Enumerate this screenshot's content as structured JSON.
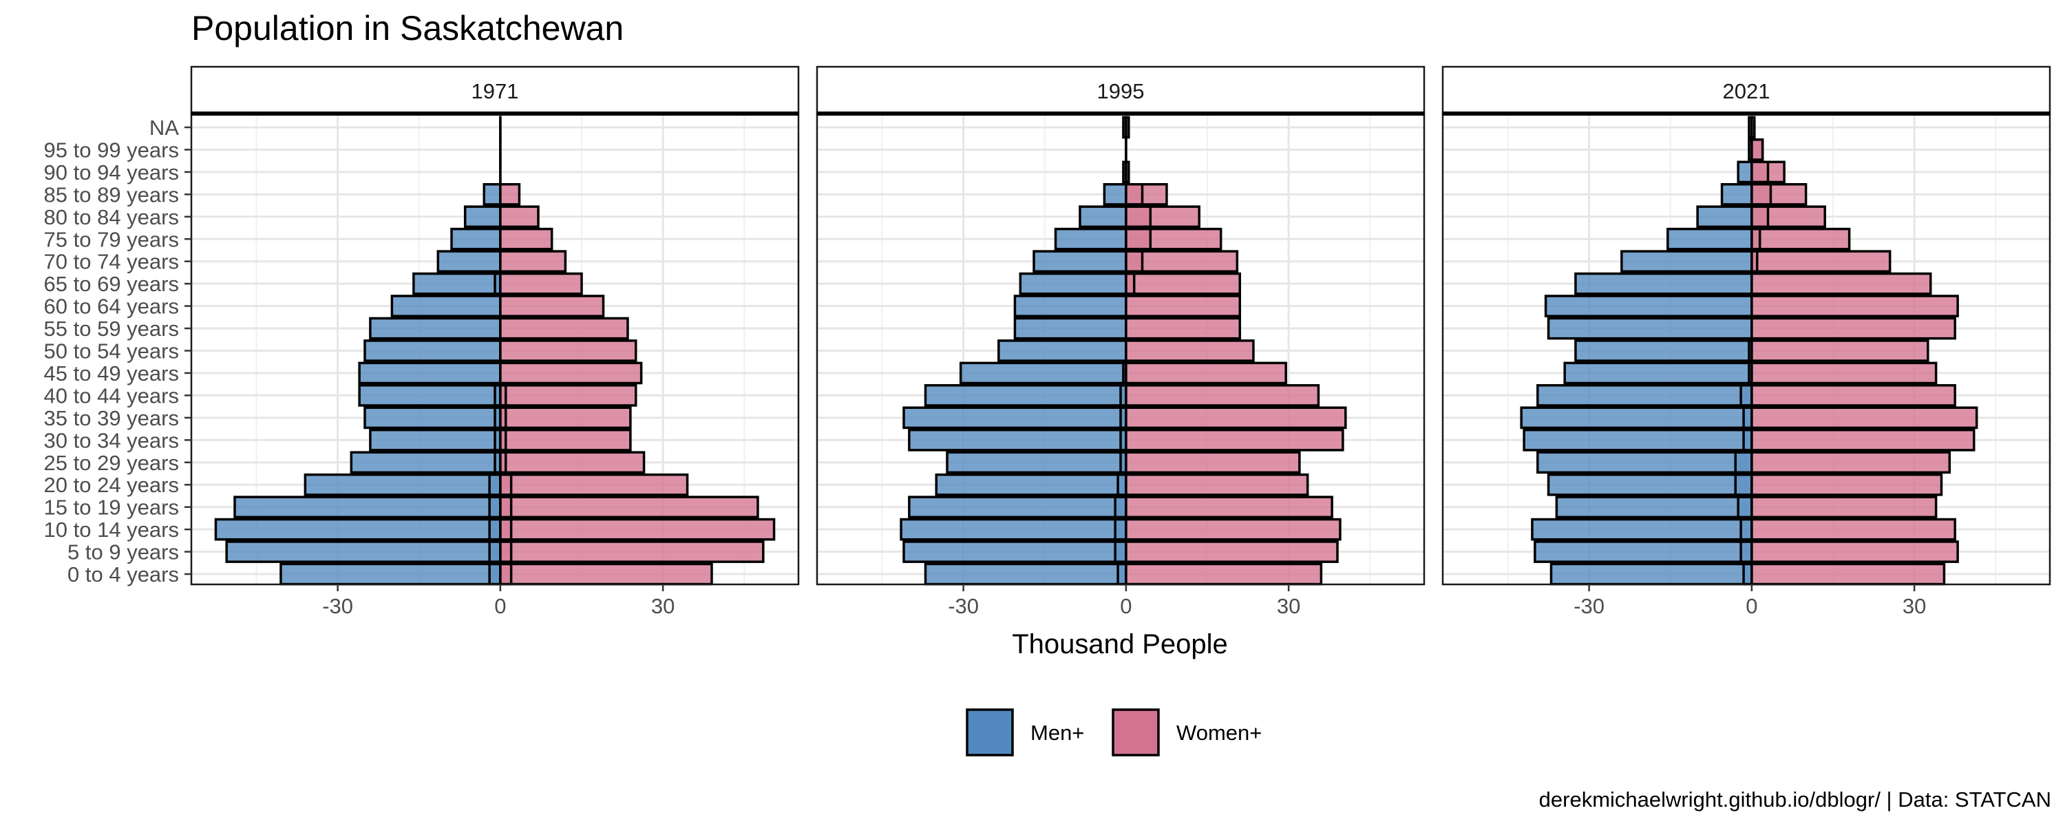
{
  "chart_data": {
    "type": "bar",
    "title": "Population in Saskatchewan",
    "xlabel": "Thousand People",
    "ylabel": "",
    "caption": "derekmichaelwright.github.io/dblogr/ | Data: STATCAN",
    "xlim": [
      -57,
      55
    ],
    "x_ticks": [
      -30,
      0,
      30
    ],
    "grid": true,
    "legend_position": "bottom",
    "categories": [
      "0 to 4 years",
      "5 to 9 years",
      "10 to 14 years",
      "15 to 19 years",
      "20 to 24 years",
      "25 to 29 years",
      "30 to 34 years",
      "35 to 39 years",
      "40 to 44 years",
      "45 to 49 years",
      "50 to 54 years",
      "55 to 59 years",
      "60 to 64 years",
      "65 to 69 years",
      "70 to 74 years",
      "75 to 79 years",
      "80 to 84 years",
      "85 to 89 years",
      "90 to 94 years",
      "95 to 99 years",
      "NA"
    ],
    "legend": [
      {
        "name": "Men+",
        "color": "#5289BE"
      },
      {
        "name": "Women+",
        "color": "#D3738F"
      }
    ],
    "panels": [
      {
        "label": "1971",
        "series": [
          {
            "name": "Men+",
            "values": [
              -40.5,
              -50.5,
              -52.5,
              -49,
              -36,
              -27.5,
              -24,
              -25,
              -26,
              -26,
              -25,
              -24,
              -20,
              -16,
              -11.5,
              -9,
              -6.5,
              -3,
              0,
              0,
              0
            ],
            "inner": [
              -2,
              -2,
              -2,
              -2,
              -2,
              -1,
              -1,
              -1,
              -1,
              0,
              0,
              0,
              0,
              -1,
              0,
              0,
              0,
              0,
              0,
              0,
              0
            ]
          },
          {
            "name": "Women+",
            "values": [
              39,
              48.5,
              50.5,
              47.5,
              34.5,
              26.5,
              24,
              24,
              25,
              26,
              25,
              23.5,
              19,
              15,
              12,
              9.5,
              7,
              3.5,
              0,
              0,
              0
            ],
            "inner": [
              2,
              2,
              2,
              2,
              2,
              1,
              1,
              1,
              1,
              0,
              0,
              0,
              0,
              0,
              0,
              0,
              0,
              0,
              0,
              0,
              0
            ]
          }
        ]
      },
      {
        "label": "1995",
        "series": [
          {
            "name": "Men+",
            "values": [
              -37,
              -41,
              -41.5,
              -40,
              -35,
              -33,
              -40,
              -41,
              -37,
              -30.5,
              -23.5,
              -20.5,
              -20.5,
              -19.5,
              -17,
              -13,
              -8.5,
              -4,
              -0.5,
              0,
              -0.5
            ],
            "inner": [
              -1.5,
              -2,
              -2,
              -2,
              -1.5,
              -1,
              -1,
              -1,
              -1,
              -0.5,
              0,
              0,
              0,
              0,
              0,
              0,
              0,
              0,
              0,
              0,
              0
            ]
          },
          {
            "name": "Women+",
            "values": [
              36,
              39,
              39.5,
              38,
              33.5,
              32,
              40,
              40.5,
              35.5,
              29.5,
              23.5,
              21,
              21,
              21,
              20.5,
              17.5,
              13.5,
              7.5,
              0.5,
              0,
              0.5
            ],
            "inner": [
              0,
              0,
              0,
              0,
              0,
              0,
              0,
              0,
              0,
              0,
              0,
              0,
              0,
              1.5,
              3,
              4.5,
              4.5,
              3,
              0,
              0,
              0
            ]
          }
        ]
      },
      {
        "label": "2021",
        "series": [
          {
            "name": "Men+",
            "values": [
              -37,
              -40,
              -40.5,
              -36,
              -37.5,
              -39.5,
              -42,
              -42.5,
              -39.5,
              -34.5,
              -32.5,
              -37.5,
              -38,
              -32.5,
              -24,
              -15.5,
              -10,
              -5.5,
              -2.5,
              -0.5,
              -0.5
            ],
            "inner": [
              -1.5,
              -2,
              -2,
              -2.5,
              -3,
              -3,
              -1.5,
              -1.5,
              -2,
              -0.5,
              -0.5,
              0,
              0,
              0,
              0,
              0,
              0,
              0,
              0,
              0,
              0
            ]
          },
          {
            "name": "Women+",
            "values": [
              35.5,
              38,
              37.5,
              34,
              35,
              36.5,
              41,
              41.5,
              37.5,
              34,
              32.5,
              37.5,
              38,
              33,
              25.5,
              18,
              13.5,
              10,
              6,
              2,
              0.5
            ],
            "inner": [
              0,
              0,
              0,
              0,
              0,
              0,
              0,
              0,
              0,
              0,
              0,
              0,
              0,
              0,
              1,
              1.5,
              3,
              3.5,
              3,
              2,
              0
            ]
          }
        ]
      }
    ]
  }
}
